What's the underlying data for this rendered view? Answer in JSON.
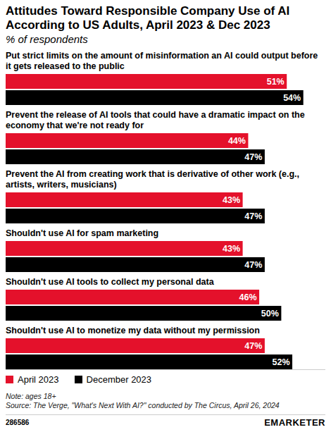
{
  "chart_data": {
    "type": "bar",
    "orientation": "horizontal",
    "title": "Attitudes Toward Responsible Company Use of AI According to US Adults, April 2023 & Dec 2023",
    "subtitle": "% of respondents",
    "categories": [
      "Put strict limits on the amount of misinformation an AI could output before it gets released to the public",
      "Prevent the release of AI tools that could have a dramatic impact on the economy that we're not ready for",
      "Prevent the AI from creating work that is derivative of other work (e.g., artists, writers, musicians)",
      "Shouldn't use AI for spam marketing",
      "Shouldn't use AI tools to collect my personal data",
      "Shouldn't use AI to monetize my data without my permission"
    ],
    "series": [
      {
        "name": "April 2023",
        "color": "#e4112b",
        "values": [
          51,
          44,
          43,
          43,
          46,
          47
        ],
        "value_labels": [
          "51%",
          "44%",
          "43%",
          "43%",
          "46%",
          "47%"
        ]
      },
      {
        "name": "December 2023",
        "color": "#000000",
        "values": [
          54,
          47,
          47,
          47,
          50,
          52
        ],
        "value_labels": [
          "54%",
          "47%",
          "47%",
          "47%",
          "50%",
          "52%"
        ]
      }
    ],
    "xlim": [
      0,
      58
    ],
    "tick_labels": false,
    "data_labels": true,
    "legend": "bottom-left",
    "note": "Note: ages 18+",
    "source": "Source: The Verge, \"What's Next With AI?\" conducted by The Circus, April 26, 2024",
    "chart_id": "286586",
    "brand": "EMARKETER"
  }
}
